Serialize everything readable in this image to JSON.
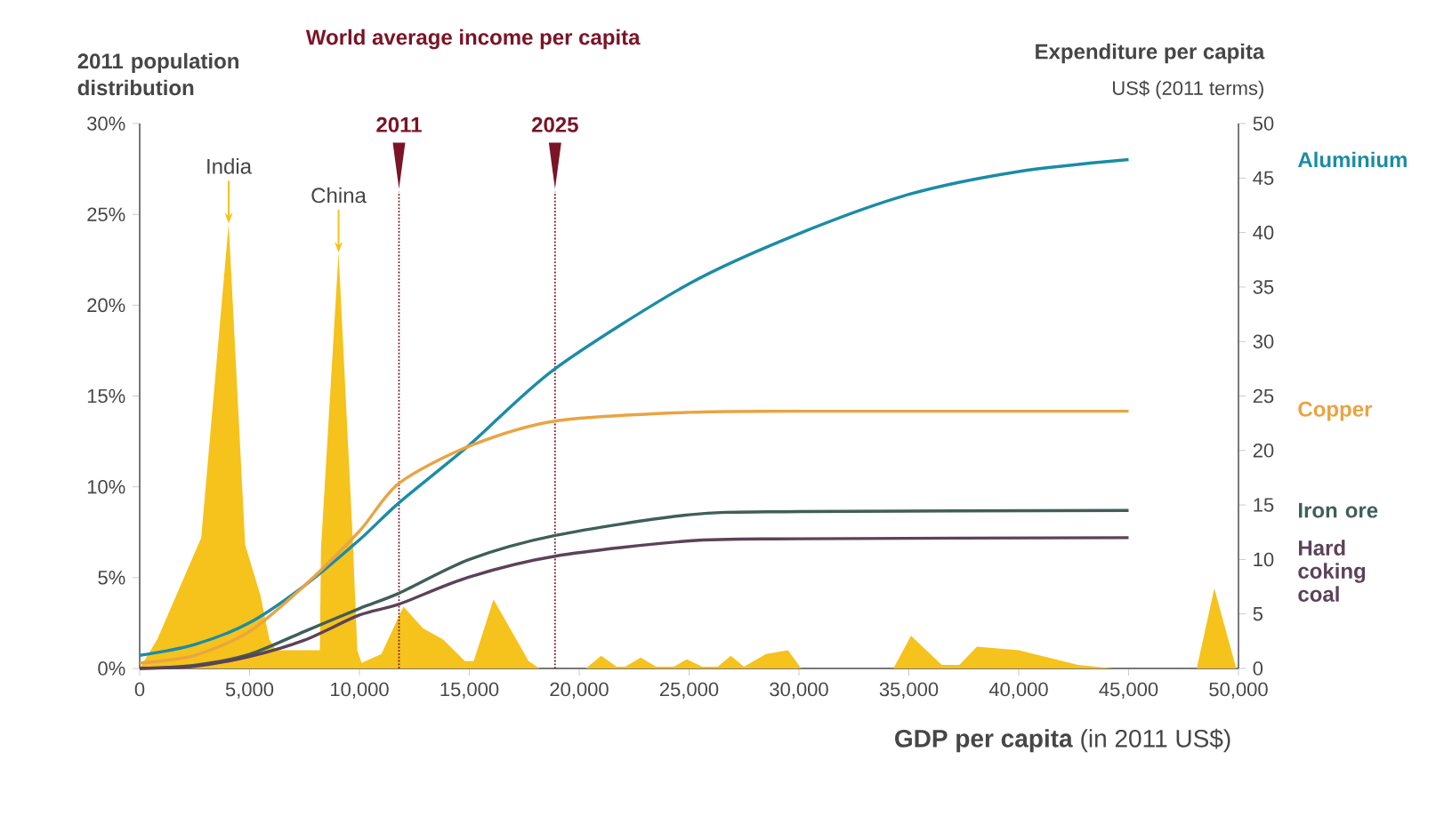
{
  "chart_data": {
    "type": "line",
    "ylabel": "2011 population distribution",
    "y2label": "Expenditure per capita",
    "xlabel": "**GDP per capita** (in 2011 US$)",
    "annotations": [
      "World average income per capita",
      "US$ (2011 terms)",
      {
        "text": "India",
        "x": 4050,
        "y": 24.5
      },
      {
        "text": "China",
        "x": 9050,
        "y": 22.9
      },
      {
        "text": "2011",
        "x": 11800,
        "y": 26.4
      },
      {
        "text": "2025",
        "x": 18900,
        "y": 26.4
      }
    ],
    "xlim": [
      0,
      50000
    ],
    "xticks": [
      0,
      {
        "value": 5000,
        "label": "5,000"
      },
      {
        "value": 10000,
        "label": "10,000"
      },
      {
        "value": 15000,
        "label": "15,000"
      },
      {
        "value": 20000,
        "label": "20,000"
      },
      {
        "value": 25000,
        "label": "25,000"
      },
      {
        "value": 30000,
        "label": "30,000"
      },
      {
        "value": 35000,
        "label": "35,000"
      },
      {
        "value": 40000,
        "label": "40,000"
      },
      {
        "value": 45000,
        "label": "45,000"
      },
      {
        "value": 50000,
        "label": "50,000"
      }
    ],
    "ylim": [
      0,
      30
    ],
    "yticks": [
      {
        "value": 0,
        "label": "0%"
      },
      {
        "value": 5,
        "label": "5%"
      },
      {
        "value": 10,
        "label": "10%"
      },
      {
        "value": 15,
        "label": "15%"
      },
      {
        "value": 20,
        "label": "20%"
      },
      {
        "value": 25,
        "label": "25%"
      },
      {
        "value": 30,
        "label": "30%"
      }
    ],
    "y2lim": [
      0,
      50
    ],
    "y2ticks": [
      0,
      5,
      10,
      15,
      20,
      25,
      30,
      35,
      40,
      45,
      50
    ],
    "series": [
      {
        "type": "area",
        "color": "#f6c21c",
        "x": [
          0,
          800,
          2800,
          4050,
          4800,
          5500,
          5900,
          6200,
          8200,
          8250,
          9050,
          9700,
          9900,
          10100,
          11000,
          12000,
          12900,
          13800,
          14800,
          15200,
          16100,
          17700,
          18200,
          20300,
          21000,
          21700,
          22100,
          22800,
          23500,
          24300,
          24900,
          25600,
          26300,
          26900,
          27500,
          28500,
          29500,
          30100,
          34300,
          35100,
          36500,
          37300,
          38100,
          40000,
          42700,
          44300,
          48100,
          48900,
          49900,
          50000
        ],
        "values": [
          0,
          1.6,
          7.2,
          24.5,
          6.8,
          4,
          1.6,
          1,
          1,
          6.6,
          22.9,
          7,
          1,
          0.3,
          0.8,
          3.4,
          2.2,
          1.6,
          0.4,
          0.4,
          3.8,
          0.4,
          0,
          0,
          0.7,
          0.1,
          0.1,
          0.6,
          0.1,
          0.1,
          0.5,
          0.1,
          0.1,
          0.7,
          0.1,
          0.8,
          1,
          0,
          0,
          1.8,
          0.2,
          0.2,
          1.2,
          1,
          0.2,
          0,
          0,
          4.4,
          0,
          0
        ]
      },
      {
        "axis": "y2",
        "name": "Aluminium",
        "color": "#1b8ca6",
        "x": [
          0,
          2500,
          5000,
          7500,
          10000,
          11800,
          15000,
          18900,
          25000,
          30000,
          35000,
          40000,
          45000
        ],
        "values": [
          1.2,
          2.2,
          4.2,
          7.6,
          11.8,
          15.2,
          20.5,
          27.5,
          35.3,
          39.9,
          43.5,
          45.6,
          46.7
        ]
      },
      {
        "axis": "y2",
        "name": "Copper",
        "color": "#e9a443",
        "x": [
          0,
          2500,
          5000,
          7500,
          10000,
          11800,
          15000,
          18900,
          25000,
          30000,
          45000
        ],
        "values": [
          0.5,
          1.2,
          3.4,
          7.6,
          12.6,
          17,
          20.4,
          22.7,
          23.5,
          23.6,
          23.6
        ]
      },
      {
        "axis": "y2",
        "name": "Iron ore",
        "color": "#3f5f58",
        "x": [
          0,
          2500,
          5000,
          7500,
          10000,
          11800,
          15000,
          18900,
          25000,
          30000,
          45000
        ],
        "values": [
          0,
          0.3,
          1.3,
          3.4,
          5.5,
          6.9,
          10,
          12.2,
          14.1,
          14.4,
          14.5
        ]
      },
      {
        "axis": "y2",
        "name": "Hard coking coal",
        "color": "#5c4258",
        "x": [
          0,
          2500,
          5000,
          7500,
          10000,
          11800,
          15000,
          18900,
          25000,
          30000,
          45000
        ],
        "values": [
          0,
          0.2,
          1.1,
          2.6,
          4.9,
          5.9,
          8.4,
          10.3,
          11.7,
          11.9,
          12
        ]
      }
    ],
    "ref_lines": [
      {
        "axis": "x",
        "value": 11800,
        "color": "#7a1426",
        "line_style": "dotted"
      },
      {
        "axis": "x",
        "value": 18900,
        "color": "#7a1426",
        "line_style": "dotted"
      }
    ]
  }
}
